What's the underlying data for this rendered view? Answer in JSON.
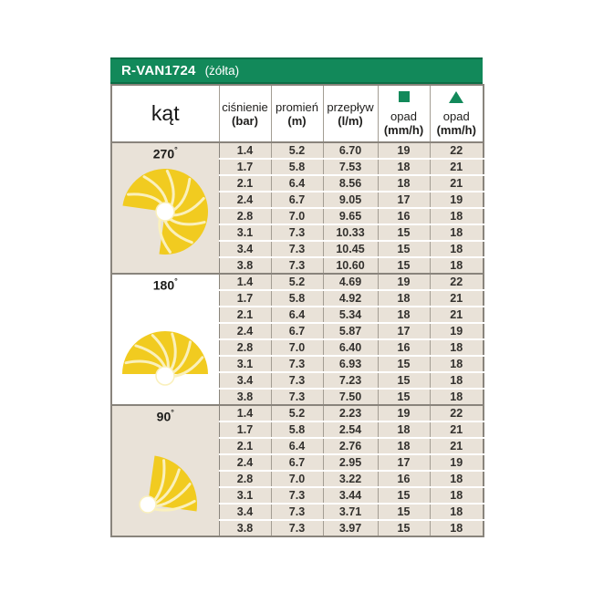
{
  "colors": {
    "green": "#12895A",
    "green_dark": "#0C6E46",
    "yellow": "#F1CB20",
    "vane": "#FAF0BC",
    "beige": "#E9E2D8",
    "border_dark": "#89847C",
    "border_light": "#A39D93",
    "text": "#33312E"
  },
  "header": {
    "model": "R-VAN1724",
    "variant": "(żółta)"
  },
  "table": {
    "angle_header": "kąt",
    "degree_symbol": "°",
    "columns": [
      {
        "label": "ciśnienie",
        "unit": "(bar)",
        "icon": ""
      },
      {
        "label": "promień",
        "unit": "(m)",
        "icon": ""
      },
      {
        "label": "przepływ",
        "unit": "(l/m)",
        "icon": ""
      },
      {
        "label": "opad",
        "unit": "(mm/h)",
        "icon": "square-icon"
      },
      {
        "label": "opad",
        "unit": "(mm/h)",
        "icon": "triangle-icon"
      }
    ],
    "sections": [
      {
        "angle": "270",
        "icon": "sprinkler-pattern-270-icon",
        "angle_cell_white": false,
        "rows": [
          [
            "1.4",
            "5.2",
            "6.70",
            "19",
            "22"
          ],
          [
            "1.7",
            "5.8",
            "7.53",
            "18",
            "21"
          ],
          [
            "2.1",
            "6.4",
            "8.56",
            "18",
            "21"
          ],
          [
            "2.4",
            "6.7",
            "9.05",
            "17",
            "19"
          ],
          [
            "2.8",
            "7.0",
            "9.65",
            "16",
            "18"
          ],
          [
            "3.1",
            "7.3",
            "10.33",
            "15",
            "18"
          ],
          [
            "3.4",
            "7.3",
            "10.45",
            "15",
            "18"
          ],
          [
            "3.8",
            "7.3",
            "10.60",
            "15",
            "18"
          ]
        ]
      },
      {
        "angle": "180",
        "icon": "sprinkler-pattern-180-icon",
        "angle_cell_white": true,
        "rows": [
          [
            "1.4",
            "5.2",
            "4.69",
            "19",
            "22"
          ],
          [
            "1.7",
            "5.8",
            "4.92",
            "18",
            "21"
          ],
          [
            "2.1",
            "6.4",
            "5.34",
            "18",
            "21"
          ],
          [
            "2.4",
            "6.7",
            "5.87",
            "17",
            "19"
          ],
          [
            "2.8",
            "7.0",
            "6.40",
            "16",
            "18"
          ],
          [
            "3.1",
            "7.3",
            "6.93",
            "15",
            "18"
          ],
          [
            "3.4",
            "7.3",
            "7.23",
            "15",
            "18"
          ],
          [
            "3.8",
            "7.3",
            "7.50",
            "15",
            "18"
          ]
        ]
      },
      {
        "angle": "90",
        "icon": "sprinkler-pattern-90-icon",
        "angle_cell_white": false,
        "rows": [
          [
            "1.4",
            "5.2",
            "2.23",
            "19",
            "22"
          ],
          [
            "1.7",
            "5.8",
            "2.54",
            "18",
            "21"
          ],
          [
            "2.1",
            "6.4",
            "2.76",
            "18",
            "21"
          ],
          [
            "2.4",
            "6.7",
            "2.95",
            "17",
            "19"
          ],
          [
            "2.8",
            "7.0",
            "3.22",
            "16",
            "18"
          ],
          [
            "3.1",
            "7.3",
            "3.44",
            "15",
            "18"
          ],
          [
            "3.4",
            "7.3",
            "3.71",
            "15",
            "18"
          ],
          [
            "3.8",
            "7.3",
            "3.97",
            "15",
            "18"
          ]
        ]
      }
    ]
  },
  "chart_data": {
    "type": "table",
    "title": "R-VAN1724 (żółta)",
    "columns": [
      "kąt",
      "ciśnienie (bar)",
      "promień (m)",
      "przepływ (l/m)",
      "opad (mm/h) ■",
      "opad (mm/h) ▲"
    ],
    "sections": [
      {
        "angle_deg": 270,
        "rows": [
          [
            1.4,
            5.2,
            6.7,
            19,
            22
          ],
          [
            1.7,
            5.8,
            7.53,
            18,
            21
          ],
          [
            2.1,
            6.4,
            8.56,
            18,
            21
          ],
          [
            2.4,
            6.7,
            9.05,
            17,
            19
          ],
          [
            2.8,
            7.0,
            9.65,
            16,
            18
          ],
          [
            3.1,
            7.3,
            10.33,
            15,
            18
          ],
          [
            3.4,
            7.3,
            10.45,
            15,
            18
          ],
          [
            3.8,
            7.3,
            10.6,
            15,
            18
          ]
        ]
      },
      {
        "angle_deg": 180,
        "rows": [
          [
            1.4,
            5.2,
            4.69,
            19,
            22
          ],
          [
            1.7,
            5.8,
            4.92,
            18,
            21
          ],
          [
            2.1,
            6.4,
            5.34,
            18,
            21
          ],
          [
            2.4,
            6.7,
            5.87,
            17,
            19
          ],
          [
            2.8,
            7.0,
            6.4,
            16,
            18
          ],
          [
            3.1,
            7.3,
            6.93,
            15,
            18
          ],
          [
            3.4,
            7.3,
            7.23,
            15,
            18
          ],
          [
            3.8,
            7.3,
            7.5,
            15,
            18
          ]
        ]
      },
      {
        "angle_deg": 90,
        "rows": [
          [
            1.4,
            5.2,
            2.23,
            19,
            22
          ],
          [
            1.7,
            5.8,
            2.54,
            18,
            21
          ],
          [
            2.1,
            6.4,
            2.76,
            18,
            21
          ],
          [
            2.4,
            6.7,
            2.95,
            17,
            19
          ],
          [
            2.8,
            7.0,
            3.22,
            16,
            18
          ],
          [
            3.1,
            7.3,
            3.44,
            15,
            18
          ],
          [
            3.4,
            7.3,
            3.71,
            15,
            18
          ],
          [
            3.8,
            7.3,
            3.97,
            15,
            18
          ]
        ]
      }
    ]
  }
}
